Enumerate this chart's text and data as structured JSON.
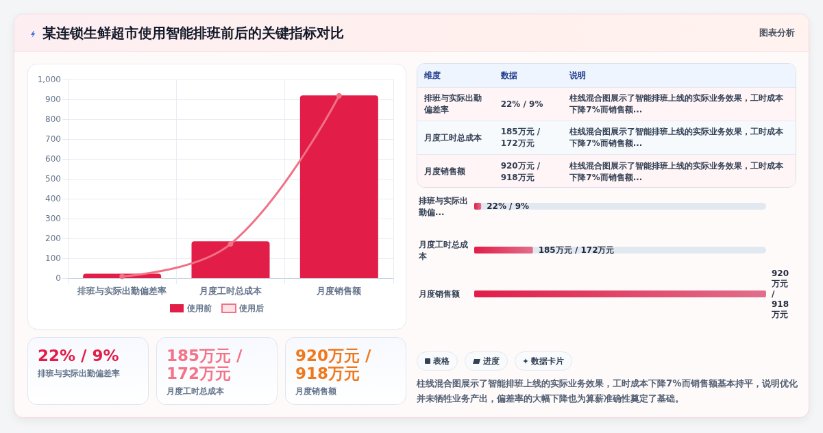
{
  "chart_data": [
    {
      "type": "bar",
      "title": "某连锁生鲜超市使用智能排班前后的关键指标对比",
      "annotations": [
        "图表分析"
      ],
      "categories": [
        "排班与实际出勤偏差率",
        "月度工时总成本",
        "月度销售额"
      ],
      "series": [
        {
          "name": "使用前",
          "color": "#e11d48",
          "values": [
            22,
            185,
            920
          ]
        },
        {
          "name": "使用后",
          "type": "line",
          "color": "#f17185",
          "values": [
            9,
            172,
            918
          ]
        }
      ],
      "ylim": [
        0,
        1000
      ],
      "yticks": [
        0,
        100,
        200,
        300,
        400,
        500,
        600,
        700,
        800,
        900,
        {
          "value": 1000,
          "label": "1,000"
        }
      ],
      "grid": true,
      "legend": "bottom",
      "marker": "circle"
    },
    {
      "type": "other",
      "annotations": [
        "维度",
        "数据",
        "说明",
        "排班与实际出勤偏差率",
        "22% / 9%",
        "柱线混合图展示了智能排班上线的实际业务效果，工时成本下降7%而销售额...",
        "月度工时总成本",
        "185万元 / 172万元",
        "柱线混合图展示了智能排班上线的实际业务效果，工时成本下降7%而销售额...",
        "月度销售额",
        "920万元 / 918万元",
        "柱线混合图展示了智能排班上线的实际业务效果，工时成本下降7%而销售额..."
      ]
    },
    {
      "type": "bar",
      "orientation": "horizontal",
      "categories": [
        "排班与实际出勤偏...",
        "月度工时总成本",
        "月度销售额"
      ],
      "values": [
        22,
        185,
        920
      ],
      "value_labels": [
        "22% / 9%",
        "185万元 / 172万元",
        "920万元 / 918万元"
      ],
      "xlim": [
        0,
        920
      ],
      "tick_labels": "y",
      "color": "#e11d48"
    },
    {
      "type": "other",
      "annotations": [
        "22% / 9%",
        "排班与实际出勤偏差率",
        "185万元 / 172万元",
        "月度工时总成本",
        "920万元 / 918万元",
        "月度销售额"
      ],
      "colors": [
        "#e11d48",
        "#f47386",
        "#f0781a"
      ]
    },
    {
      "type": "other",
      "annotations": [
        "表格",
        "进度",
        "数据卡片",
        "柱线混合图展示了智能排班上线的实际业务效果，工时成本下降7%而销售额基本持平，说明优化并未牺牲业务产出，偏差率的大幅下降也为算薪准确性奠定了基础。"
      ]
    }
  ]
}
